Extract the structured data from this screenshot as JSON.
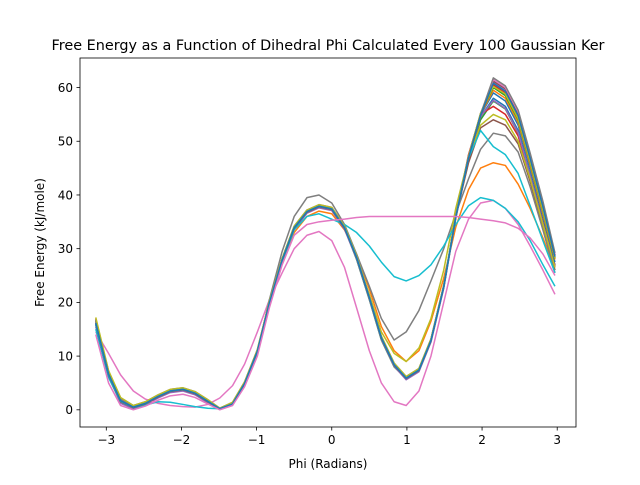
{
  "chart_data": {
    "type": "line",
    "title": "Free Energy as a Function of Dihedral Phi Calculated Every 100 Gaussian Ker",
    "xlabel": "Phi (Radians)",
    "ylabel": "Free Energy (kJ/mole)",
    "xlim": [
      -3.35,
      3.25
    ],
    "ylim": [
      -3.2,
      65.5
    ],
    "xticks": [
      -3,
      -2,
      -1,
      0,
      1,
      2,
      3
    ],
    "yticks": [
      0,
      10,
      20,
      30,
      40,
      50,
      60
    ],
    "grid": false,
    "x": [
      -3.14,
      -2.97,
      -2.81,
      -2.64,
      -2.48,
      -2.31,
      -2.15,
      -1.98,
      -1.82,
      -1.65,
      -1.49,
      -1.32,
      -1.16,
      -0.99,
      -0.83,
      -0.66,
      -0.5,
      -0.33,
      -0.17,
      0.0,
      0.17,
      0.33,
      0.5,
      0.66,
      0.83,
      0.99,
      1.16,
      1.32,
      1.49,
      1.65,
      1.82,
      1.98,
      2.15,
      2.31,
      2.48,
      2.64,
      2.81,
      2.97
    ],
    "series": [
      {
        "color": "#1f77b4",
        "values": [
          16.5,
          7.0,
          2.0,
          0.6,
          1.3,
          2.6,
          3.6,
          3.9,
          3.2,
          1.7,
          0.2,
          1.2,
          5.0,
          11.0,
          20.0,
          28.0,
          34.0,
          37.0,
          38.0,
          37.5,
          34.0,
          28.5,
          21.0,
          13.5,
          8.5,
          6.0,
          7.5,
          13.0,
          23.0,
          36.0,
          47.0,
          54.5,
          58.0,
          56.5,
          52.0,
          44.0,
          35.0,
          27.0
        ]
      },
      {
        "color": "#ff7f0e",
        "values": [
          17.0,
          6.8,
          1.5,
          0.2,
          1.0,
          2.3,
          3.3,
          3.6,
          3.0,
          1.5,
          0.1,
          1.0,
          4.8,
          10.8,
          19.8,
          27.5,
          33.0,
          36.0,
          37.0,
          36.5,
          33.5,
          29.0,
          22.5,
          15.5,
          11.0,
          9.0,
          11.0,
          16.5,
          24.5,
          34.0,
          41.0,
          45.0,
          46.0,
          45.5,
          42.0,
          37.5,
          32.0,
          26.0
        ]
      },
      {
        "color": "#2ca02c",
        "values": [
          16.0,
          6.5,
          1.8,
          0.5,
          1.2,
          2.5,
          3.5,
          3.8,
          3.1,
          1.6,
          0.2,
          1.1,
          4.9,
          10.9,
          19.9,
          27.8,
          33.8,
          36.8,
          37.8,
          37.3,
          33.8,
          28.0,
          20.5,
          13.0,
          8.0,
          5.8,
          7.3,
          12.8,
          22.8,
          35.8,
          46.8,
          54.0,
          57.5,
          56.0,
          51.5,
          43.5,
          34.5,
          26.5
        ]
      },
      {
        "color": "#d62728",
        "values": [
          16.8,
          7.1,
          2.1,
          0.7,
          1.4,
          2.7,
          3.7,
          4.0,
          3.3,
          1.8,
          0.3,
          1.3,
          5.1,
          11.1,
          20.1,
          28.1,
          34.1,
          37.1,
          38.1,
          37.6,
          34.1,
          28.6,
          21.1,
          13.6,
          8.6,
          6.1,
          7.6,
          13.1,
          23.1,
          36.1,
          47.5,
          55.0,
          56.5,
          55.0,
          51.0,
          43.5,
          34.8,
          26.8
        ]
      },
      {
        "color": "#9467bd",
        "values": [
          15.5,
          6.2,
          1.2,
          0.2,
          0.9,
          2.2,
          3.2,
          3.5,
          2.8,
          1.3,
          0.1,
          0.9,
          4.6,
          10.6,
          19.6,
          27.6,
          33.6,
          36.6,
          37.6,
          37.1,
          33.6,
          28.1,
          20.6,
          13.1,
          8.1,
          5.6,
          7.1,
          12.6,
          22.6,
          35.6,
          46.6,
          54.6,
          57.6,
          56.1,
          51.6,
          43.6,
          34.6,
          26.6
        ]
      },
      {
        "color": "#8c564b",
        "values": [
          16.2,
          6.9,
          1.9,
          0.6,
          1.3,
          2.6,
          3.6,
          3.9,
          3.2,
          1.7,
          0.2,
          1.2,
          5.0,
          11.0,
          20.0,
          28.0,
          34.0,
          37.0,
          38.0,
          37.5,
          34.0,
          28.5,
          21.0,
          13.5,
          8.5,
          6.0,
          7.5,
          13.0,
          23.0,
          36.0,
          46.0,
          52.5,
          54.0,
          53.0,
          49.5,
          42.5,
          34.0,
          26.0
        ]
      },
      {
        "color": "#e377c2",
        "values": [
          14.5,
          10.5,
          6.5,
          3.5,
          2.0,
          1.2,
          0.8,
          0.6,
          0.5,
          1.0,
          2.2,
          4.5,
          8.5,
          14.5,
          20.5,
          25.5,
          30.0,
          32.5,
          33.2,
          31.5,
          26.5,
          19.0,
          11.0,
          5.0,
          1.5,
          0.8,
          3.5,
          10.0,
          20.0,
          29.5,
          35.5,
          38.5,
          39.0,
          37.5,
          34.5,
          30.5,
          26.0,
          21.5
        ]
      },
      {
        "color": "#7f7f7f",
        "values": [
          16.0,
          6.6,
          1.6,
          0.4,
          1.1,
          2.4,
          3.4,
          3.7,
          3.0,
          1.5,
          0.2,
          1.0,
          4.8,
          10.8,
          20.5,
          29.5,
          36.0,
          39.5,
          40.0,
          38.5,
          34.5,
          29.0,
          23.0,
          17.0,
          13.0,
          14.5,
          18.5,
          24.0,
          30.0,
          36.5,
          43.0,
          48.5,
          51.5,
          51.0,
          48.0,
          41.5,
          33.5,
          25.5
        ]
      },
      {
        "color": "#bcbd22",
        "values": [
          16.6,
          7.0,
          2.0,
          0.6,
          1.3,
          2.6,
          3.6,
          3.9,
          3.2,
          1.7,
          0.2,
          1.2,
          5.0,
          11.0,
          20.0,
          28.0,
          34.0,
          37.0,
          38.0,
          37.5,
          34.0,
          28.5,
          21.5,
          14.5,
          10.5,
          9.0,
          11.5,
          17.0,
          26.0,
          37.5,
          47.0,
          53.0,
          55.0,
          54.0,
          50.0,
          43.0,
          34.5,
          26.5
        ]
      },
      {
        "color": "#17becf",
        "values": [
          15.0,
          6.0,
          1.5,
          0.4,
          0.9,
          1.5,
          1.4,
          1.0,
          0.6,
          0.3,
          0.2,
          1.0,
          4.5,
          10.5,
          19.5,
          27.5,
          33.5,
          36.0,
          36.5,
          35.5,
          34.5,
          33.0,
          30.5,
          27.5,
          24.8,
          24.0,
          25.0,
          27.0,
          30.5,
          34.5,
          38.0,
          39.5,
          39.0,
          37.5,
          35.0,
          31.5,
          27.0,
          23.0
        ]
      },
      {
        "color": "#1f77b4",
        "values": [
          15.8,
          6.4,
          1.6,
          0.5,
          1.2,
          2.5,
          3.5,
          3.8,
          3.1,
          1.6,
          0.2,
          1.1,
          4.9,
          10.9,
          19.9,
          27.9,
          33.9,
          36.9,
          37.9,
          37.4,
          33.9,
          28.4,
          20.9,
          13.4,
          8.4,
          5.9,
          7.4,
          12.9,
          22.9,
          35.9,
          46.9,
          54.9,
          59.0,
          57.5,
          53.0,
          45.0,
          36.0,
          27.5
        ]
      },
      {
        "color": "#ff7f0e",
        "values": [
          16.4,
          6.9,
          1.9,
          0.6,
          1.3,
          2.6,
          3.6,
          3.9,
          3.2,
          1.7,
          0.2,
          1.2,
          5.0,
          11.0,
          20.0,
          28.0,
          34.0,
          37.0,
          38.0,
          37.5,
          34.0,
          28.5,
          21.0,
          13.5,
          8.5,
          6.0,
          7.5,
          13.0,
          23.0,
          36.0,
          47.0,
          55.0,
          59.5,
          58.0,
          53.5,
          45.5,
          36.5,
          28.0
        ]
      },
      {
        "color": "#2ca02c",
        "values": [
          16.7,
          7.1,
          2.1,
          0.7,
          1.4,
          2.7,
          3.7,
          4.0,
          3.3,
          1.8,
          0.3,
          1.3,
          5.1,
          11.1,
          20.1,
          28.1,
          34.1,
          37.1,
          38.1,
          37.6,
          34.1,
          28.6,
          21.1,
          13.6,
          8.6,
          6.1,
          7.6,
          13.1,
          23.1,
          36.1,
          47.1,
          55.1,
          60.0,
          58.5,
          54.0,
          46.0,
          37.0,
          28.2
        ]
      },
      {
        "color": "#d62728",
        "values": [
          16.1,
          6.7,
          1.7,
          0.5,
          1.2,
          2.5,
          3.5,
          3.8,
          3.1,
          1.6,
          0.2,
          1.1,
          4.9,
          10.9,
          19.9,
          27.9,
          33.9,
          36.9,
          37.9,
          37.4,
          33.9,
          28.4,
          20.9,
          13.4,
          8.4,
          5.9,
          7.4,
          12.9,
          22.9,
          35.9,
          46.9,
          54.9,
          60.5,
          59.0,
          54.5,
          46.5,
          37.5,
          28.4
        ]
      },
      {
        "color": "#9467bd",
        "values": [
          16.9,
          7.2,
          2.2,
          0.8,
          1.5,
          2.8,
          3.8,
          4.1,
          3.4,
          1.9,
          0.3,
          1.4,
          5.2,
          11.2,
          20.2,
          28.2,
          34.2,
          37.2,
          38.2,
          37.7,
          34.2,
          28.7,
          21.2,
          13.7,
          8.7,
          6.2,
          7.7,
          13.2,
          23.2,
          36.2,
          47.2,
          55.2,
          61.0,
          59.5,
          55.0,
          47.0,
          38.0,
          28.6
        ]
      },
      {
        "color": "#8c564b",
        "values": [
          15.9,
          6.5,
          1.5,
          0.4,
          1.1,
          2.4,
          3.4,
          3.7,
          3.0,
          1.5,
          0.1,
          1.0,
          4.8,
          10.8,
          19.8,
          27.8,
          33.8,
          36.8,
          37.8,
          37.3,
          33.8,
          28.3,
          20.8,
          13.3,
          8.3,
          5.8,
          7.3,
          12.8,
          22.8,
          35.8,
          46.8,
          54.8,
          61.2,
          59.8,
          55.3,
          47.3,
          38.3,
          28.8
        ]
      },
      {
        "color": "#e377c2",
        "values": [
          16.3,
          6.8,
          1.8,
          0.6,
          1.3,
          2.6,
          3.6,
          3.9,
          3.2,
          1.7,
          0.2,
          1.2,
          5.0,
          11.0,
          20.0,
          28.0,
          34.0,
          37.0,
          38.0,
          37.5,
          34.0,
          28.5,
          21.0,
          13.5,
          8.5,
          6.0,
          7.5,
          13.0,
          23.0,
          36.0,
          47.0,
          55.0,
          61.5,
          60.0,
          55.5,
          47.5,
          38.5,
          29.0
        ]
      },
      {
        "color": "#7f7f7f",
        "values": [
          16.5,
          7.0,
          2.0,
          0.6,
          1.3,
          2.6,
          3.6,
          3.9,
          3.2,
          1.7,
          0.2,
          1.2,
          5.0,
          11.0,
          20.0,
          28.0,
          34.0,
          37.0,
          38.0,
          37.5,
          34.0,
          28.5,
          21.0,
          13.5,
          8.5,
          6.0,
          7.5,
          13.0,
          23.0,
          36.0,
          47.0,
          55.0,
          61.8,
          60.3,
          55.8,
          47.8,
          38.8,
          29.2
        ]
      },
      {
        "color": "#bcbd22",
        "values": [
          17.2,
          7.3,
          2.3,
          0.8,
          1.5,
          2.8,
          3.8,
          4.1,
          3.4,
          1.9,
          0.3,
          1.4,
          5.2,
          11.2,
          20.2,
          28.2,
          34.2,
          37.2,
          38.2,
          37.7,
          34.2,
          28.7,
          21.2,
          13.7,
          8.7,
          6.2,
          7.7,
          13.2,
          23.2,
          36.2,
          47.2,
          55.2,
          60.2,
          58.8,
          54.2,
          46.2,
          37.2,
          28.3
        ]
      },
      {
        "color": "#17becf",
        "values": [
          16.0,
          6.6,
          1.6,
          0.5,
          1.2,
          2.5,
          3.5,
          3.8,
          3.1,
          1.6,
          0.2,
          1.1,
          4.9,
          10.9,
          19.9,
          27.9,
          33.9,
          36.9,
          37.9,
          37.4,
          33.9,
          28.4,
          20.9,
          13.4,
          8.4,
          5.9,
          7.4,
          12.9,
          22.9,
          35.9,
          46.9,
          52.0,
          49.0,
          47.5,
          44.0,
          38.0,
          31.5,
          25.5
        ]
      },
      {
        "color": "#1f77b4",
        "values": [
          16.2,
          6.7,
          1.7,
          0.5,
          1.2,
          2.5,
          3.5,
          3.8,
          3.1,
          1.6,
          0.2,
          1.1,
          4.9,
          10.9,
          19.9,
          27.9,
          33.9,
          36.9,
          37.9,
          37.4,
          33.9,
          28.4,
          20.9,
          13.4,
          8.4,
          5.9,
          7.4,
          12.9,
          22.9,
          35.9,
          46.9,
          54.9,
          60.8,
          59.3,
          54.8,
          46.8,
          37.8,
          28.5
        ]
      },
      {
        "color": "#e377c2",
        "values": [
          14.0,
          5.0,
          0.8,
          0.0,
          0.7,
          1.8,
          2.6,
          2.9,
          2.3,
          1.1,
          0.0,
          0.8,
          4.3,
          10.0,
          19.0,
          27.0,
          32.5,
          34.5,
          35.0,
          35.3,
          35.5,
          35.8,
          36.0,
          36.0,
          36.0,
          36.0,
          36.0,
          36.0,
          36.0,
          36.0,
          35.8,
          35.5,
          35.2,
          34.8,
          33.8,
          32.0,
          29.0,
          25.0
        ]
      }
    ]
  }
}
